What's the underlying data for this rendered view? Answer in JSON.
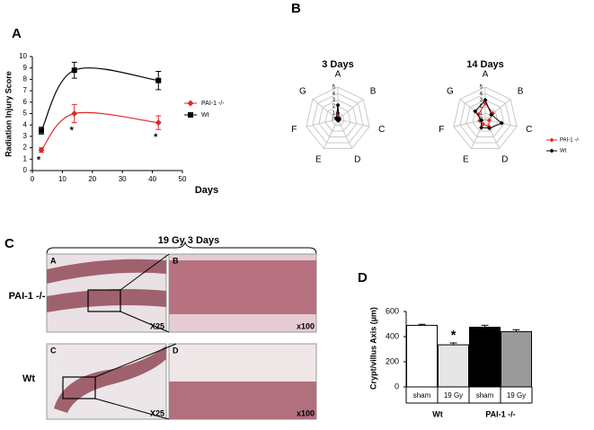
{
  "chart_data": [
    {
      "type": "line",
      "panel_label": "A",
      "ylabel": "Radiation Injury Score",
      "xlabel": "Days",
      "x": [
        3,
        14,
        42
      ],
      "series": [
        {
          "name": "PAI-1 -/-",
          "color": "#e3262b",
          "marker": "diamond",
          "values": [
            1.8,
            5.0,
            4.2
          ],
          "errors": [
            0.2,
            0.8,
            0.6
          ],
          "significance": [
            "*",
            "*",
            "*"
          ]
        },
        {
          "name": "Wt",
          "color": "#000000",
          "marker": "square",
          "values": [
            3.5,
            8.8,
            7.9
          ],
          "errors": [
            0.3,
            0.7,
            0.8
          ]
        }
      ],
      "xlim": [
        0,
        50
      ],
      "xticks": [
        0,
        10,
        20,
        30,
        40,
        50
      ],
      "ylim": [
        0,
        10
      ],
      "yticks": [
        0,
        1,
        2,
        3,
        4,
        5,
        6,
        7,
        8,
        9,
        10
      ]
    },
    {
      "type": "radar",
      "panel_label": "B",
      "title": "3 Days",
      "categories": [
        "A",
        "B",
        "C",
        "D",
        "E",
        "F",
        "G"
      ],
      "rlim": [
        0,
        5
      ],
      "rticks": [
        0,
        1,
        2,
        3,
        4,
        5
      ],
      "series": [
        {
          "color": "#e3262b",
          "values": [
            1,
            0.3,
            0.1,
            0.1,
            0.1,
            0.1,
            0.2
          ]
        },
        {
          "color": "#000000",
          "values": [
            2.2,
            0.2,
            0.2,
            0.2,
            0.1,
            0.1,
            0.3
          ]
        }
      ]
    },
    {
      "type": "radar",
      "title": "14 Days",
      "categories": [
        "A",
        "B",
        "C",
        "D",
        "E",
        "F",
        "G"
      ],
      "rlim": [
        0,
        5
      ],
      "rticks": [
        0,
        1,
        2,
        3,
        4,
        5
      ],
      "series": [
        {
          "name": "PAI-1 -/-",
          "color": "#e3262b",
          "values": [
            2.5,
            1.5,
            0.6,
            1.2,
            0.8,
            0.9,
            1.3
          ]
        },
        {
          "name": "Wt",
          "color": "#000000",
          "values": [
            3,
            1.2,
            2.6,
            1.5,
            1.4,
            0.6,
            2.0
          ]
        }
      ]
    },
    {
      "type": "bar",
      "panel_label": "D",
      "ylabel": "Crypt/villus Axis (µm)",
      "categories": [
        "sham",
        "19 Gy",
        "sham",
        "19 Gy"
      ],
      "groups": [
        "Wt",
        "PAI-1 -/-"
      ],
      "values": [
        490,
        335,
        475,
        440
      ],
      "errors": [
        8,
        15,
        15,
        15
      ],
      "colors": [
        "#ffffff",
        "#e6e6e6",
        "#000000",
        "#9a9a9a"
      ],
      "annotation": "*",
      "ylim": [
        0,
        600
      ],
      "yticks": [
        0,
        200,
        400,
        600
      ]
    }
  ],
  "figure_c": {
    "panel_label": "C",
    "title": "19 Gy 3 Days",
    "rows": [
      "PAI-1 -/-",
      "Wt"
    ],
    "images": [
      {
        "letter": "A",
        "magnification": "X25"
      },
      {
        "letter": "B",
        "magnification": "x100"
      },
      {
        "letter": "C",
        "magnification": "X25"
      },
      {
        "letter": "D",
        "magnification": "x100"
      }
    ]
  }
}
